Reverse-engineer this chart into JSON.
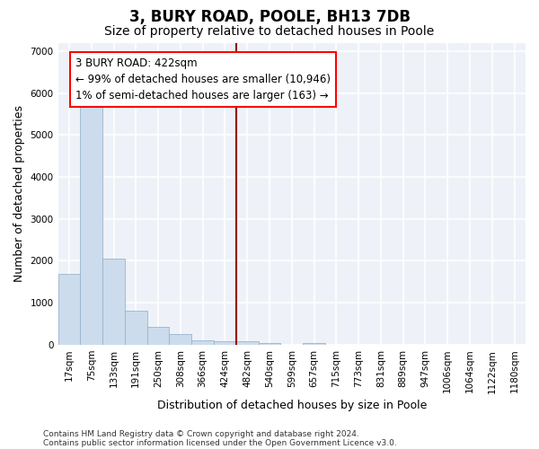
{
  "title": "3, BURY ROAD, POOLE, BH13 7DB",
  "subtitle": "Size of property relative to detached houses in Poole",
  "xlabel": "Distribution of detached houses by size in Poole",
  "ylabel": "Number of detached properties",
  "footnote1": "Contains HM Land Registry data © Crown copyright and database right 2024.",
  "footnote2": "Contains public sector information licensed under the Open Government Licence v3.0.",
  "bar_labels": [
    "17sqm",
    "75sqm",
    "133sqm",
    "191sqm",
    "250sqm",
    "308sqm",
    "366sqm",
    "424sqm",
    "482sqm",
    "540sqm",
    "599sqm",
    "657sqm",
    "715sqm",
    "773sqm",
    "831sqm",
    "889sqm",
    "947sqm",
    "1006sqm",
    "1064sqm",
    "1122sqm",
    "1180sqm"
  ],
  "bar_values": [
    1700,
    5750,
    2050,
    820,
    430,
    250,
    110,
    80,
    75,
    50,
    0,
    50,
    0,
    0,
    0,
    0,
    0,
    0,
    0,
    0,
    0
  ],
  "bar_color": "#ccdcec",
  "bar_edgecolor": "#9ab4cc",
  "vline_x": 7.5,
  "vline_color": "#990000",
  "annotation_text": "3 BURY ROAD: 422sqm\n← 99% of detached houses are smaller (10,946)\n1% of semi-detached houses are larger (163) →",
  "ylim": [
    0,
    7200
  ],
  "yticks": [
    0,
    1000,
    2000,
    3000,
    4000,
    5000,
    6000,
    7000
  ],
  "bg_color": "#eef2f8",
  "grid_color": "#ffffff",
  "title_fontsize": 12,
  "subtitle_fontsize": 10,
  "axis_label_fontsize": 9,
  "tick_fontsize": 7.5,
  "annotation_fontsize": 8.5
}
